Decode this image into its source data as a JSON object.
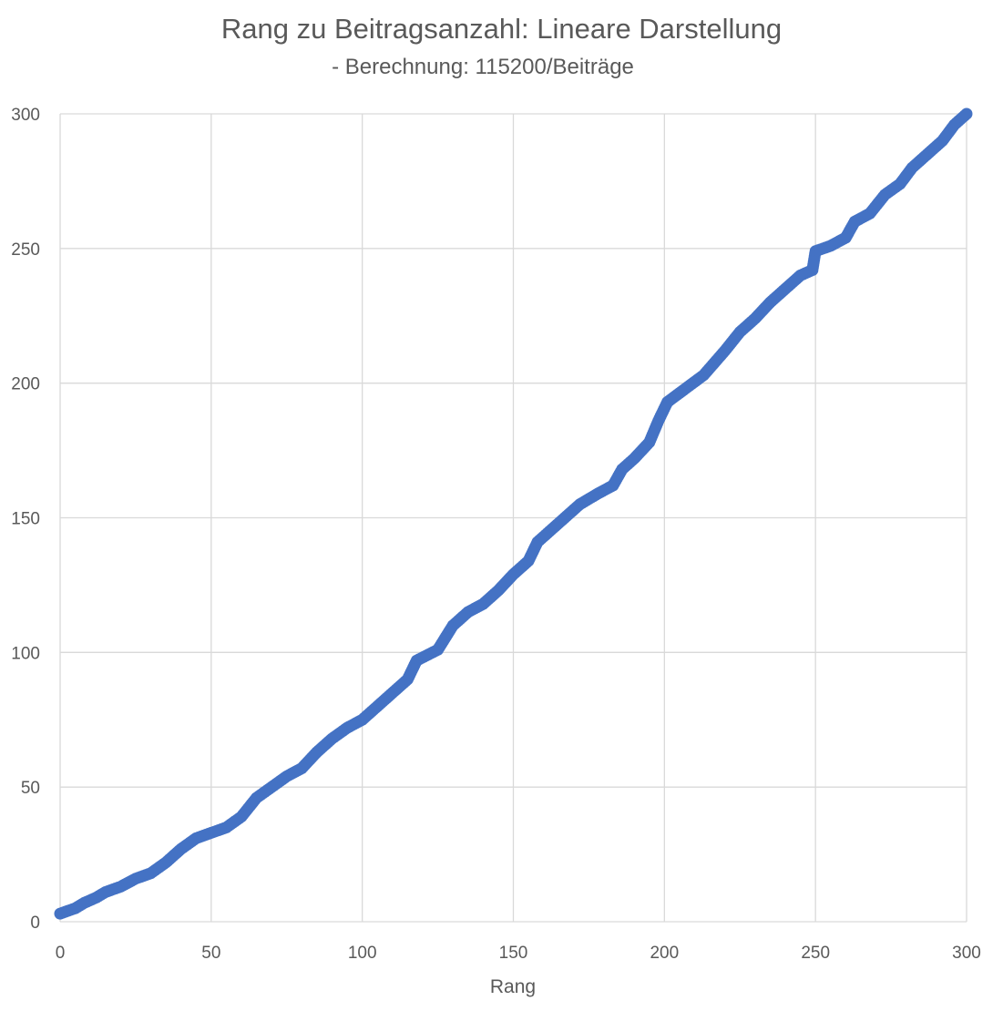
{
  "chart_data": {
    "type": "scatter",
    "title": "Rang zu Beitragsanzahl: Lineare Darstellung",
    "subtitle": "- Berechnung: 115200/Beiträge",
    "xlabel": "Rang",
    "ylabel": "",
    "xlim": [
      0,
      300
    ],
    "ylim": [
      0,
      300
    ],
    "x_ticks": [
      "0",
      "50",
      "100",
      "150",
      "200",
      "250",
      "300"
    ],
    "y_ticks": [
      "0",
      "50",
      "100",
      "150",
      "200",
      "250",
      "300"
    ],
    "grid": true,
    "legend": "none",
    "marker_color": "#4472C4",
    "series": [
      {
        "points": [
          [
            0,
            3
          ],
          [
            5,
            5
          ],
          [
            8,
            7
          ],
          [
            12,
            9
          ],
          [
            15,
            11
          ],
          [
            20,
            13
          ],
          [
            25,
            16
          ],
          [
            30,
            18
          ],
          [
            35,
            22
          ],
          [
            40,
            27
          ],
          [
            45,
            31
          ],
          [
            50,
            33
          ],
          [
            55,
            35
          ],
          [
            60,
            39
          ],
          [
            65,
            46
          ],
          [
            70,
            50
          ],
          [
            75,
            54
          ],
          [
            80,
            57
          ],
          [
            85,
            63
          ],
          [
            90,
            68
          ],
          [
            95,
            72
          ],
          [
            100,
            75
          ],
          [
            105,
            80
          ],
          [
            110,
            85
          ],
          [
            115,
            90
          ],
          [
            118,
            97
          ],
          [
            125,
            101
          ],
          [
            130,
            110
          ],
          [
            135,
            115
          ],
          [
            140,
            118
          ],
          [
            145,
            123
          ],
          [
            150,
            129
          ],
          [
            155,
            134
          ],
          [
            158,
            141
          ],
          [
            162,
            145
          ],
          [
            167,
            150
          ],
          [
            172,
            155
          ],
          [
            178,
            159
          ],
          [
            183,
            162
          ],
          [
            186,
            168
          ],
          [
            190,
            172
          ],
          [
            195,
            178
          ],
          [
            198,
            186
          ],
          [
            201,
            193
          ],
          [
            207,
            198
          ],
          [
            213,
            203
          ],
          [
            220,
            212
          ],
          [
            225,
            219
          ],
          [
            230,
            224
          ],
          [
            235,
            230
          ],
          [
            240,
            235
          ],
          [
            245,
            240
          ],
          [
            249,
            242
          ],
          [
            250,
            249
          ],
          [
            255,
            251
          ],
          [
            260,
            254
          ],
          [
            263,
            260
          ],
          [
            268,
            263
          ],
          [
            273,
            270
          ],
          [
            278,
            274
          ],
          [
            282,
            280
          ],
          [
            287,
            285
          ],
          [
            292,
            290
          ],
          [
            296,
            296
          ],
          [
            300,
            300
          ]
        ]
      }
    ]
  }
}
